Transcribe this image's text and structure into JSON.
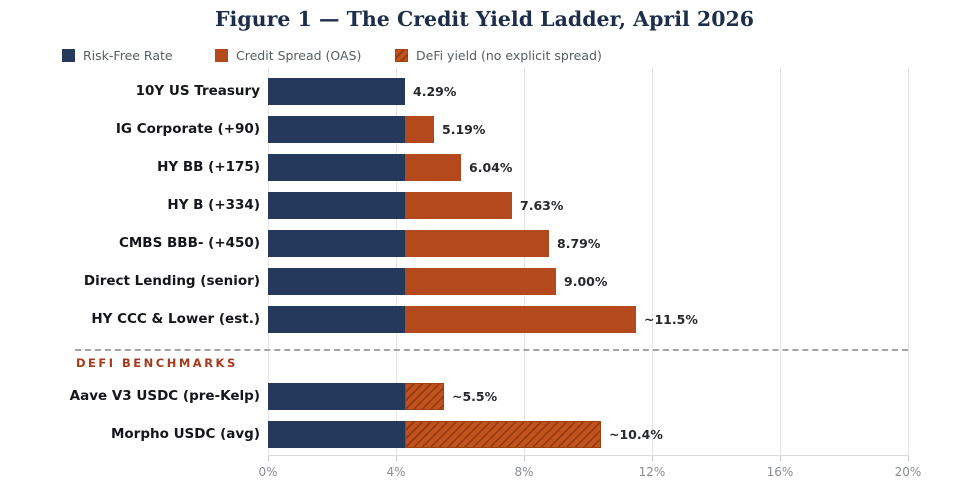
{
  "chart_data": {
    "type": "bar",
    "orientation": "horizontal",
    "title": "Figure 1 — The Credit Yield Ladder, April 2026",
    "section_label": "DEFI BENCHMARKS",
    "legend_items": [
      {
        "label": "Risk-Free Rate",
        "style": "solid-navy"
      },
      {
        "label": "Credit Spread (OAS)",
        "style": "solid-rust"
      },
      {
        "label": "DeFi yield (no explicit spread)",
        "style": "hatched-rust"
      }
    ],
    "x_axis": {
      "tick_labels": [
        "0%",
        "4%",
        "8%",
        "12%",
        "16%",
        "20%"
      ],
      "tick_values": [
        0,
        4,
        8,
        12,
        16,
        20
      ],
      "range": [
        0,
        20
      ],
      "grid": true
    },
    "risk_free_rate_pct": 4.29,
    "rows": [
      {
        "label": "10Y US Treasury",
        "group": "credit",
        "risk_free": 4.29,
        "spread": 0.0,
        "total": 4.29,
        "value_label": "4.29%",
        "hatched": false
      },
      {
        "label": "IG Corporate (+90)",
        "group": "credit",
        "risk_free": 4.29,
        "spread": 0.9,
        "total": 5.19,
        "value_label": "5.19%",
        "hatched": false
      },
      {
        "label": "HY BB (+175)",
        "group": "credit",
        "risk_free": 4.29,
        "spread": 1.75,
        "total": 6.04,
        "value_label": "6.04%",
        "hatched": false
      },
      {
        "label": "HY B (+334)",
        "group": "credit",
        "risk_free": 4.29,
        "spread": 3.34,
        "total": 7.63,
        "value_label": "7.63%",
        "hatched": false
      },
      {
        "label": "CMBS BBB- (+450)",
        "group": "credit",
        "risk_free": 4.29,
        "spread": 4.5,
        "total": 8.79,
        "value_label": "8.79%",
        "hatched": false
      },
      {
        "label": "Direct Lending (senior)",
        "group": "credit",
        "risk_free": 4.29,
        "spread": 4.71,
        "total": 9.0,
        "value_label": "9.00%",
        "hatched": false
      },
      {
        "label": "HY CCC & Lower (est.)",
        "group": "credit",
        "risk_free": 4.29,
        "spread": 7.21,
        "total": 11.5,
        "value_label": "~11.5%",
        "hatched": false
      },
      {
        "label": "Aave V3 USDC (pre-Kelp)",
        "group": "defi",
        "risk_free": 4.29,
        "spread": 1.21,
        "total": 5.5,
        "value_label": "~5.5%",
        "hatched": true
      },
      {
        "label": "Morpho USDC (avg)",
        "group": "defi",
        "risk_free": 4.29,
        "spread": 6.11,
        "total": 10.4,
        "value_label": "~10.4%",
        "hatched": true
      }
    ],
    "colors": {
      "risk_free": "#24395c",
      "credit_spread": "#b4491d",
      "defi_hatch_base": "#c2531e",
      "defi_hatch_line": "#963c11",
      "title": "#1c2e4a",
      "section_label": "#a43c1c",
      "axis_text": "#8b8e96",
      "grid": "#e5e5e8"
    }
  }
}
